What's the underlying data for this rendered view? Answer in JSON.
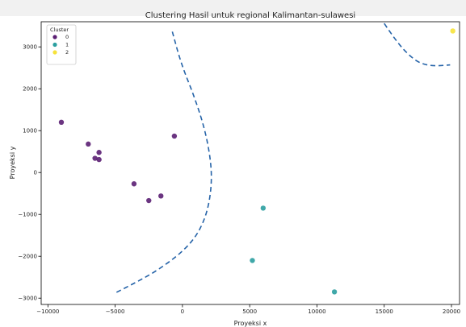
{
  "chart_data": {
    "type": "scatter",
    "title": "Clustering Hasil untuk regional Kalimantan-sulawesi",
    "xlabel": "Proyeksi x",
    "ylabel": "Proyeksi y",
    "xlim": [
      -10500,
      20600
    ],
    "ylim": [
      -3150,
      3600
    ],
    "xticks": [
      -10000,
      -5000,
      0,
      5000,
      10000,
      15000,
      20000
    ],
    "yticks": [
      -3000,
      -2000,
      -1000,
      0,
      1000,
      2000,
      3000
    ],
    "grid": false,
    "legend": {
      "title": "Cluster",
      "position": "top-left"
    },
    "series": [
      {
        "name": "0",
        "color": "#5b1f73",
        "points": [
          [
            -9000,
            1200
          ],
          [
            -7000,
            680
          ],
          [
            -6500,
            340
          ],
          [
            -6200,
            480
          ],
          [
            -6200,
            310
          ],
          [
            -600,
            870
          ],
          [
            -3600,
            -270
          ],
          [
            -2500,
            -670
          ],
          [
            -1600,
            -560
          ]
        ]
      },
      {
        "name": "1",
        "color": "#2b9fa0",
        "points": [
          [
            6000,
            -850
          ],
          [
            5200,
            -2100
          ],
          [
            11300,
            -2850
          ]
        ]
      },
      {
        "name": "2",
        "color": "#f6e23a",
        "points": [
          [
            20100,
            3380
          ]
        ]
      }
    ],
    "boundaries": [
      {
        "style": "dashed",
        "color": "#2563a8",
        "points": [
          [
            -4900,
            -2860
          ],
          [
            -2800,
            -2520
          ],
          [
            -1200,
            -2190
          ],
          [
            100,
            -1860
          ],
          [
            1100,
            -1490
          ],
          [
            1800,
            -1000
          ],
          [
            2150,
            -400
          ],
          [
            2150,
            200
          ],
          [
            1700,
            1000
          ],
          [
            900,
            1800
          ],
          [
            -100,
            2600
          ],
          [
            -800,
            3420
          ]
        ]
      },
      {
        "style": "dashed",
        "color": "#2563a8",
        "points": [
          [
            15000,
            3560
          ],
          [
            15900,
            3130
          ],
          [
            16900,
            2780
          ],
          [
            17700,
            2600
          ],
          [
            18700,
            2540
          ],
          [
            19900,
            2570
          ]
        ]
      }
    ]
  }
}
